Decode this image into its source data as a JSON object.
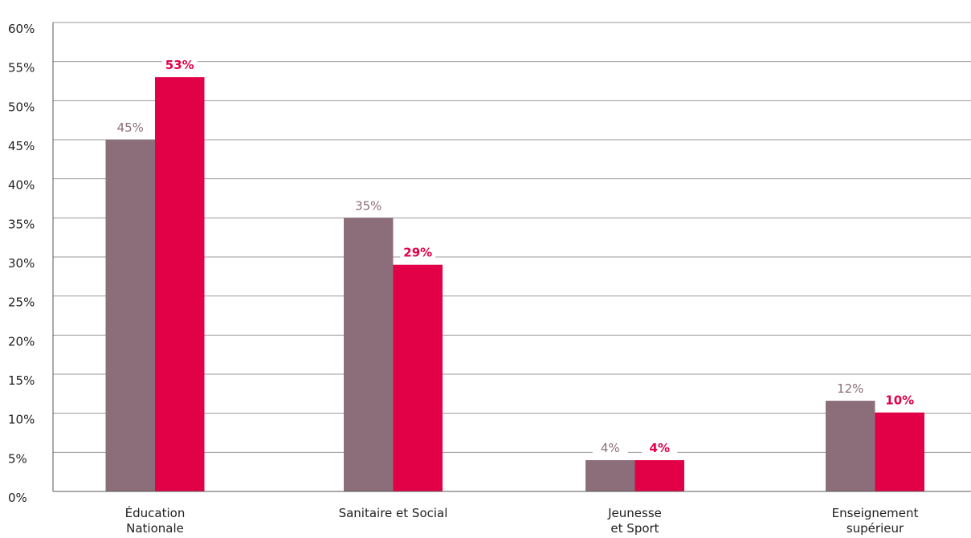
{
  "chart_data": {
    "type": "bar",
    "title": "",
    "xlabel": "",
    "ylabel": "",
    "ylim": [
      0,
      60
    ],
    "y_ticks": [
      "0%",
      "5%",
      "10%",
      "15%",
      "20%",
      "25%",
      "30%",
      "35%",
      "40%",
      "45%",
      "50%",
      "55%",
      "60%"
    ],
    "categories": [
      [
        "Éducation",
        "Nationale"
      ],
      [
        "Sanitaire et Social"
      ],
      [
        "Jeunesse",
        "et Sport"
      ],
      [
        "Enseignement",
        "supérieur"
      ]
    ],
    "series": [
      {
        "values": [
          45,
          35,
          4,
          11.6
        ],
        "labels": [
          "45%",
          "35%",
          "4%",
          "12%"
        ],
        "color": "#8c6e7a",
        "label_color": "#8c6e7a",
        "label_bold": false
      },
      {
        "values": [
          53,
          29,
          4,
          10.1
        ],
        "labels": [
          "53%",
          "29%",
          "4%",
          "10%"
        ],
        "color": "#e20047",
        "label_color": "#e20047",
        "label_bold": true
      }
    ],
    "grid": true,
    "legend": "none"
  }
}
